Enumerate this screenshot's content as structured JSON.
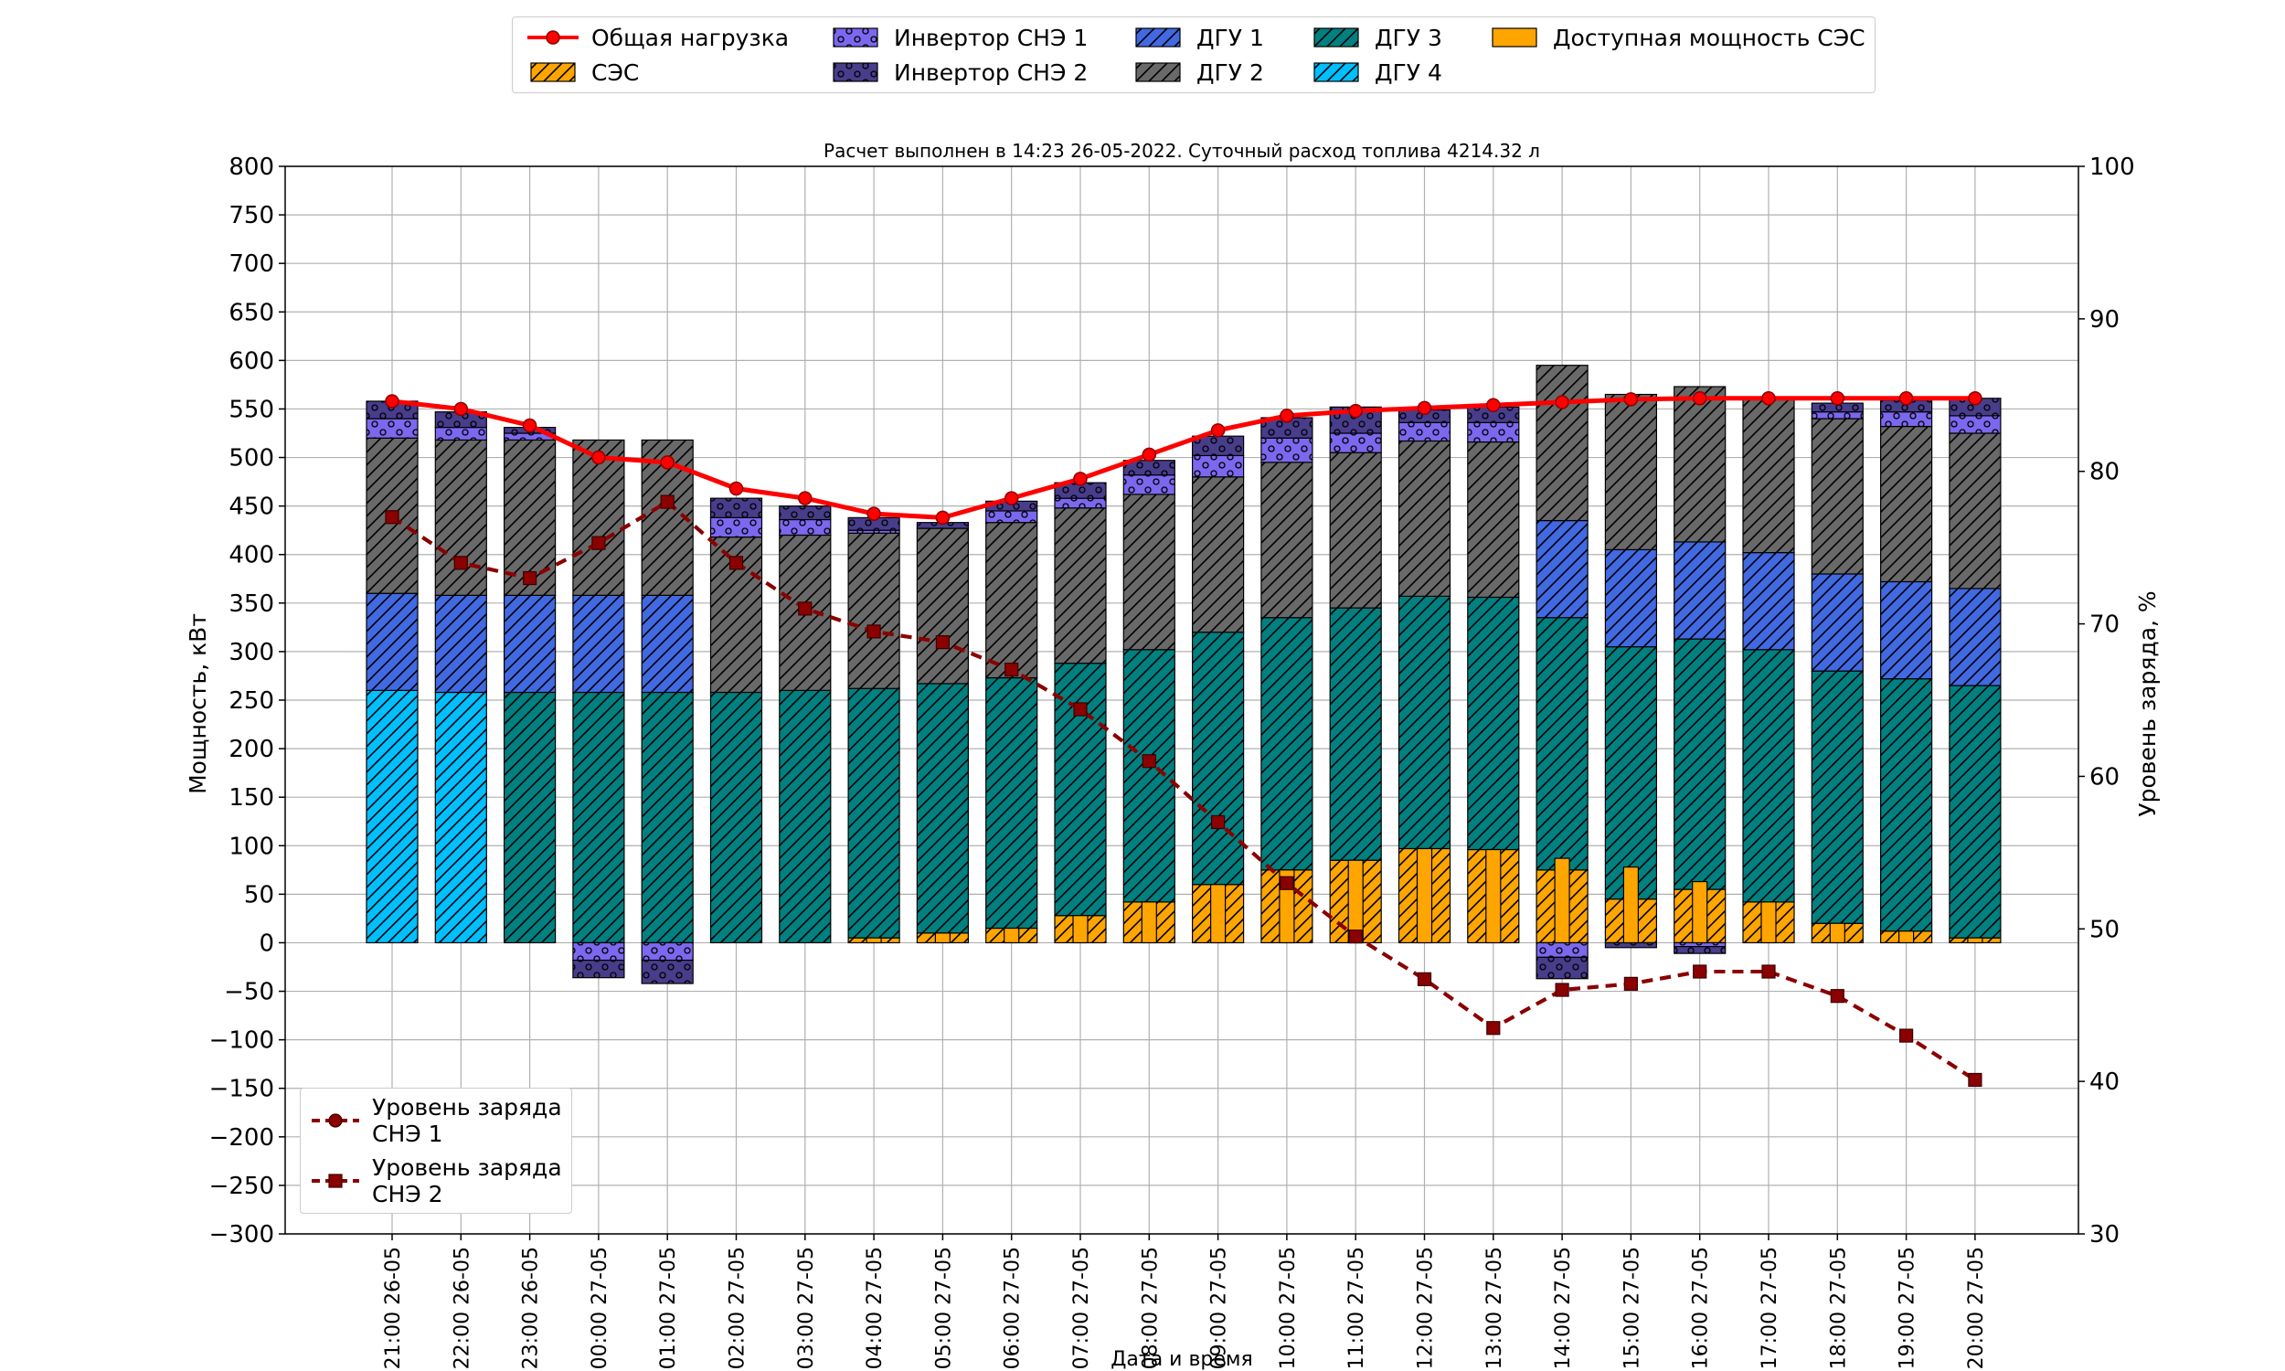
{
  "chart_data": {
    "type": "bar",
    "title": "Расчет выполнен в 14:23 26-05-2022. Суточный расход топлива 4214.32 л",
    "xlabel": "Дата и время",
    "ylabel": "Мощность, кВт",
    "y2label": "Уровень заряда, %",
    "ylim": [
      -300,
      800
    ],
    "y2lim": [
      30,
      100
    ],
    "yticks": [
      -300,
      -250,
      -200,
      -150,
      -100,
      -50,
      0,
      50,
      100,
      150,
      200,
      250,
      300,
      350,
      400,
      450,
      500,
      550,
      600,
      650,
      700,
      750,
      800
    ],
    "y2ticks": [
      30,
      40,
      50,
      60,
      70,
      80,
      90,
      100
    ],
    "grid": true,
    "stacked": true,
    "categories": [
      "21:00 26-05",
      "22:00 26-05",
      "23:00 26-05",
      "00:00 27-05",
      "01:00 27-05",
      "02:00 27-05",
      "03:00 27-05",
      "04:00 27-05",
      "05:00 27-05",
      "06:00 27-05",
      "07:00 27-05",
      "08:00 27-05",
      "09:00 27-05",
      "10:00 27-05",
      "11:00 27-05",
      "12:00 27-05",
      "13:00 27-05",
      "14:00 27-05",
      "15:00 27-05",
      "16:00 27-05",
      "17:00 27-05",
      "18:00 27-05",
      "19:00 27-05",
      "20:00 27-05"
    ],
    "series": [
      {
        "name": "СЭС",
        "kind": "bar",
        "color": "#FFA500",
        "hatch": "diag",
        "values": [
          0,
          0,
          0,
          0,
          0,
          0,
          0,
          5,
          10,
          15,
          28,
          42,
          60,
          75,
          85,
          97,
          96,
          75,
          45,
          55,
          42,
          20,
          12,
          5
        ]
      },
      {
        "name": "Доступная мощность СЭС",
        "kind": "bar-narrow",
        "color": "#FFA500",
        "hatch": "none",
        "values": [
          0,
          0,
          0,
          0,
          0,
          0,
          0,
          5,
          10,
          15,
          28,
          42,
          60,
          75,
          85,
          97,
          96,
          87,
          78,
          63,
          42,
          20,
          12,
          5
        ]
      },
      {
        "name": "ДГУ 4",
        "kind": "bar",
        "color": "#00BFFF",
        "hatch": "diag",
        "values": [
          260,
          258,
          0,
          0,
          0,
          0,
          0,
          0,
          0,
          0,
          0,
          0,
          0,
          0,
          0,
          0,
          0,
          0,
          0,
          0,
          0,
          0,
          0,
          0
        ]
      },
      {
        "name": "ДГУ 3",
        "kind": "bar",
        "color": "#008080",
        "hatch": "diag",
        "values": [
          0,
          0,
          258,
          258,
          258,
          258,
          260,
          257,
          257,
          258,
          260,
          260,
          260,
          260,
          260,
          260,
          260,
          260,
          260,
          258,
          260,
          260,
          260,
          260
        ]
      },
      {
        "name": "ДГУ 1",
        "kind": "bar",
        "color": "#4169E1",
        "hatch": "diag",
        "values": [
          100,
          100,
          100,
          100,
          100,
          0,
          0,
          0,
          0,
          0,
          0,
          0,
          0,
          0,
          0,
          0,
          0,
          100,
          100,
          100,
          100,
          100,
          100,
          100
        ]
      },
      {
        "name": "ДГУ 2",
        "kind": "bar",
        "color": "#696969",
        "hatch": "diag",
        "values": [
          160,
          160,
          160,
          160,
          160,
          160,
          160,
          160,
          160,
          160,
          160,
          160,
          160,
          160,
          160,
          160,
          160,
          160,
          160,
          160,
          160,
          160,
          160,
          160
        ]
      },
      {
        "name": "Инвертор СНЭ 1",
        "kind": "bar",
        "color": "#7B68EE",
        "hatch": "dots",
        "values": [
          20,
          13,
          7,
          -18,
          -18,
          20,
          16,
          3,
          0,
          12,
          10,
          20,
          22,
          25,
          20,
          19,
          20,
          -15,
          0,
          -4,
          0,
          7,
          15,
          18
        ]
      },
      {
        "name": "Инвертор СНЭ 2",
        "kind": "bar",
        "color": "#483D8B",
        "hatch": "dots",
        "values": [
          18,
          16,
          6,
          -18,
          -24,
          20,
          14,
          13,
          6,
          10,
          16,
          15,
          20,
          21,
          27,
          13,
          16,
          -22,
          -5,
          -7,
          0,
          9,
          12,
          18
        ]
      },
      {
        "name": "Общая нагрузка",
        "kind": "line",
        "color": "#FF0000",
        "values": [
          558,
          550,
          533,
          500,
          495,
          468,
          458,
          442,
          438,
          458,
          478,
          503,
          528,
          543,
          548,
          551,
          554,
          557,
          560,
          561,
          561,
          561,
          561,
          561
        ]
      },
      {
        "name": "Уровень заряда СНЭ 1",
        "kind": "soc-line",
        "axis": "y2",
        "color": "#8B0000",
        "marker": "circle",
        "values": [
          77,
          74,
          73,
          75.3,
          78,
          74,
          71,
          69.5,
          68.8,
          67,
          64.4,
          61,
          57,
          53,
          49.5,
          46.7,
          43.5,
          46,
          46.4,
          47.2,
          47.2,
          45.6,
          43,
          40.1
        ]
      },
      {
        "name": "Уровень заряда СНЭ 2",
        "kind": "soc-line",
        "axis": "y2",
        "color": "#8B0000",
        "marker": "square",
        "values": [
          77,
          74,
          73,
          75.3,
          78,
          74,
          71,
          69.5,
          68.8,
          67,
          64.4,
          61,
          57,
          53,
          49.5,
          46.7,
          43.5,
          46,
          46.4,
          47.2,
          47.2,
          45.6,
          43,
          40.1
        ]
      }
    ]
  },
  "legend": {
    "top": [
      {
        "label": "Общая нагрузка",
        "icon": "line-marker"
      },
      {
        "label": "СЭС",
        "icon": "hatched-box"
      },
      {
        "label": "Инвертор СНЭ 1",
        "icon": "dotted-box"
      },
      {
        "label": "Инвертор СНЭ 2",
        "icon": "dotted-box"
      },
      {
        "label": "ДГУ 1",
        "icon": "hatched-box"
      },
      {
        "label": "ДГУ 2",
        "icon": "hatched-box"
      },
      {
        "label": "ДГУ 3",
        "icon": "hatched-box"
      },
      {
        "label": "ДГУ 4",
        "icon": "hatched-box"
      },
      {
        "label": "Доступная мощность СЭС",
        "icon": "solid-box"
      }
    ],
    "soc": [
      {
        "label": "Уровень заряда СНЭ 1"
      },
      {
        "label": "Уровень заряда СНЭ 2"
      }
    ]
  }
}
